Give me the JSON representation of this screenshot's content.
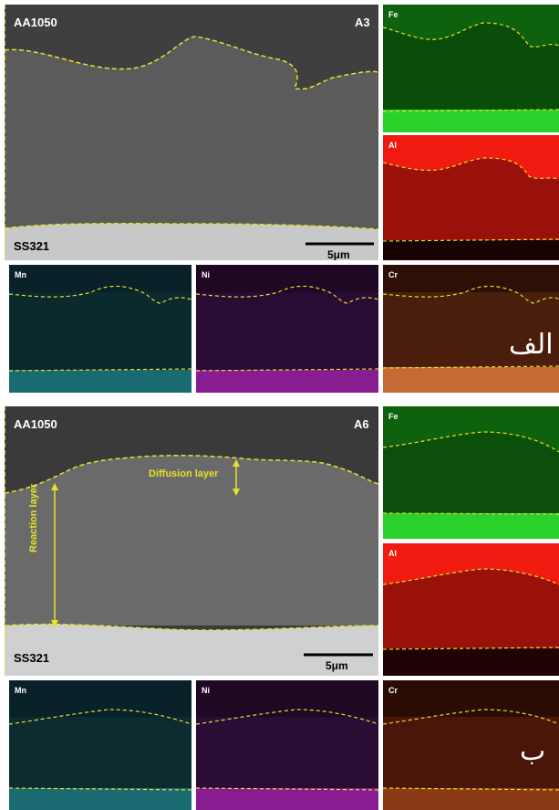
{
  "figure_a": {
    "main": {
      "sample": "AA1050",
      "id": "A3",
      "substrate": "SS321",
      "scale": "5μm"
    },
    "maps": {
      "fe": "Fe",
      "al": "Al",
      "mn": "Mn",
      "ni": "Ni",
      "cr": "Cr"
    },
    "panel_letter": "الف"
  },
  "figure_b": {
    "main": {
      "sample": "AA1050",
      "id": "A6",
      "substrate": "SS321",
      "scale": "5μm",
      "diffusion_label": "Diffusion layer",
      "reaction_label": "Reaction layer"
    },
    "maps": {
      "fe": "Fe",
      "al": "Al",
      "mn": "Mn",
      "ni": "Ni",
      "cr": "Cr"
    },
    "panel_letter": "ب"
  },
  "colors": {
    "boundary": "#e8e12a",
    "fe": "#0f8a0f",
    "al": "#c0150d",
    "mn": "#0f3a3f",
    "ni": "#3a1245",
    "cr": "#4a1e0e"
  }
}
